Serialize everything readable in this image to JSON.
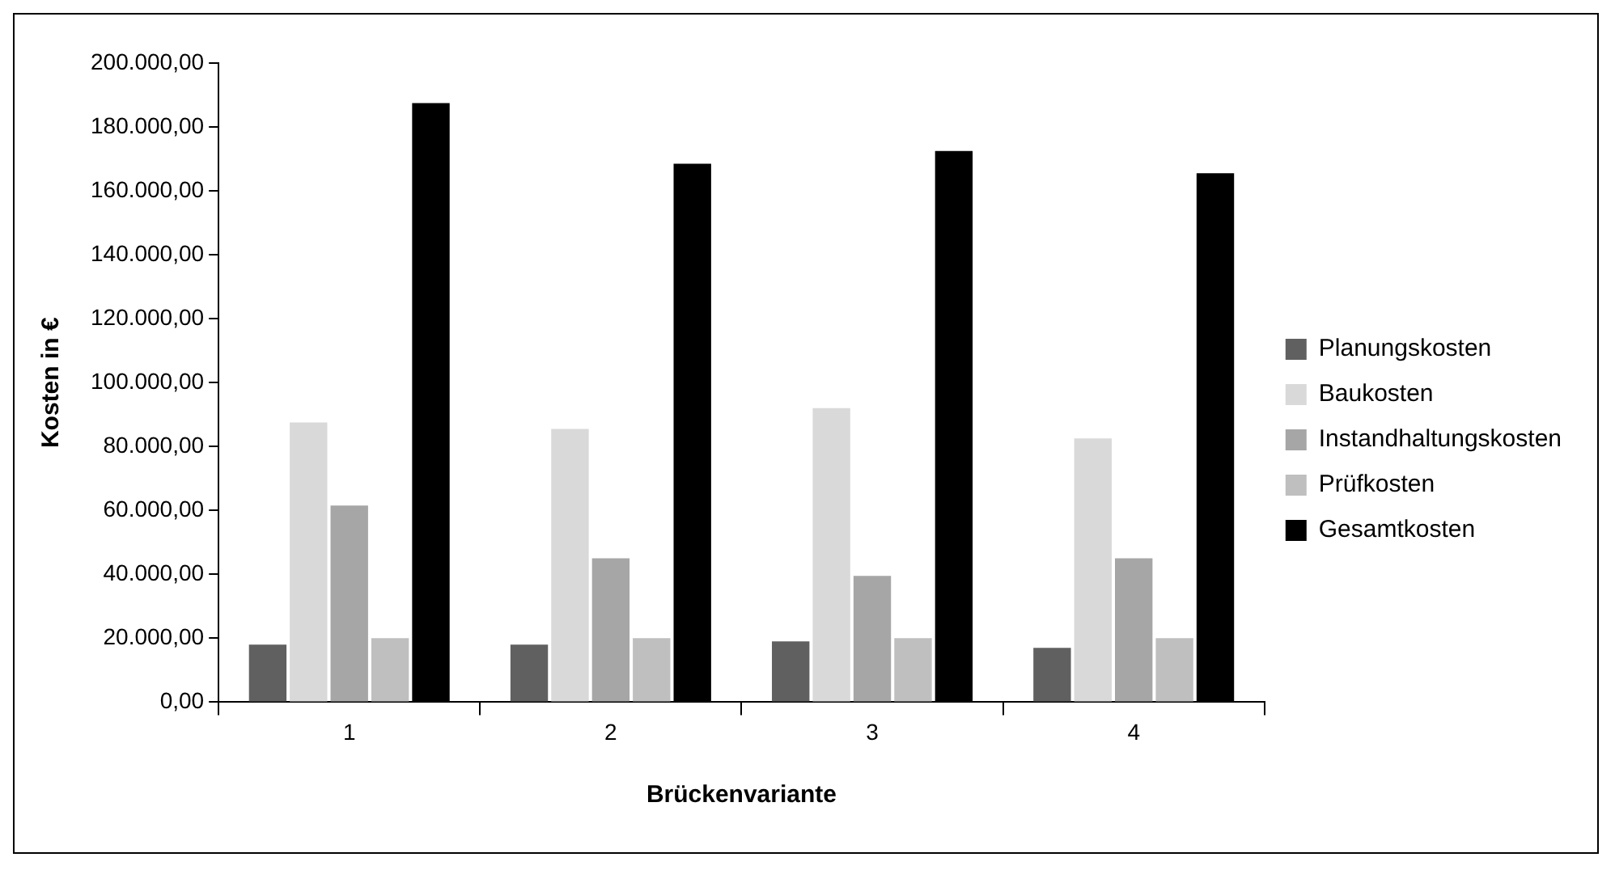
{
  "chart_data": {
    "type": "bar",
    "xlabel": "Brückenvariante",
    "ylabel": "Kosten in €",
    "categories": [
      "1",
      "2",
      "3",
      "4"
    ],
    "series": [
      {
        "name": "Planungskosten",
        "color": "#606060",
        "values": [
          18000,
          18000,
          19000,
          17000
        ]
      },
      {
        "name": "Baukosten",
        "color": "#d9d9d9",
        "values": [
          87500,
          85500,
          92000,
          82500
        ]
      },
      {
        "name": "Instandhaltungskosten",
        "color": "#a6a6a6",
        "values": [
          61500,
          45000,
          39500,
          45000
        ]
      },
      {
        "name": "Prüfkosten",
        "color": "#bfbfbf",
        "values": [
          20000,
          20000,
          20000,
          20000
        ]
      },
      {
        "name": "Gesamtkosten",
        "color": "#000000",
        "values": [
          187500,
          168500,
          172500,
          165500
        ]
      }
    ],
    "ylim": [
      0,
      200000
    ],
    "yticks": [
      {
        "value": 0,
        "label": "0,00"
      },
      {
        "value": 20000,
        "label": "20.000,00"
      },
      {
        "value": 40000,
        "label": "40.000,00"
      },
      {
        "value": 60000,
        "label": "60.000,00"
      },
      {
        "value": 80000,
        "label": "80.000,00"
      },
      {
        "value": 100000,
        "label": "100.000,00"
      },
      {
        "value": 120000,
        "label": "120.000,00"
      },
      {
        "value": 140000,
        "label": "140.000,00"
      },
      {
        "value": 160000,
        "label": "160.000,00"
      },
      {
        "value": 180000,
        "label": "180.000,00"
      },
      {
        "value": 200000,
        "label": "200.000,00"
      }
    ],
    "grid": false,
    "legend": "right"
  }
}
